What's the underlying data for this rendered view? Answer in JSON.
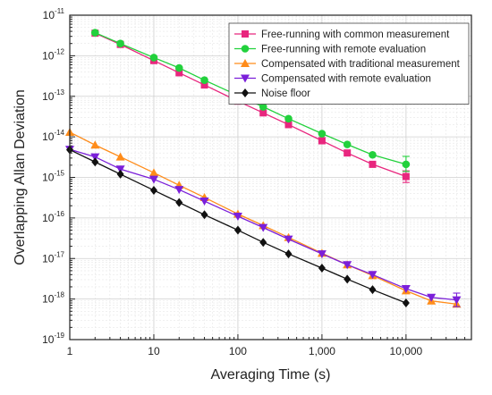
{
  "chart_data": {
    "type": "line",
    "xlabel": "Averaging Time (s)",
    "ylabel": "Overlapping Allan Deviation",
    "xscale": "log",
    "yscale": "log",
    "xlim": [
      1,
      60000
    ],
    "ylim": [
      1e-19,
      1e-11
    ],
    "x_ticks": [
      {
        "value": 1,
        "label": "1"
      },
      {
        "value": 10,
        "label": "10"
      },
      {
        "value": 100,
        "label": "100"
      },
      {
        "value": 1000,
        "label": "1,000"
      },
      {
        "value": 10000,
        "label": "10,000"
      }
    ],
    "y_ticks": [
      {
        "value": 1e-19,
        "base": "10",
        "exp": "-19"
      },
      {
        "value": 1e-18,
        "base": "10",
        "exp": "-18"
      },
      {
        "value": 1e-17,
        "base": "10",
        "exp": "-17"
      },
      {
        "value": 1e-16,
        "base": "10",
        "exp": "-16"
      },
      {
        "value": 1e-15,
        "base": "10",
        "exp": "-15"
      },
      {
        "value": 1e-14,
        "base": "10",
        "exp": "-14"
      },
      {
        "value": 1e-13,
        "base": "10",
        "exp": "-13"
      },
      {
        "value": 1e-12,
        "base": "10",
        "exp": "-12"
      },
      {
        "value": 1e-11,
        "base": "10",
        "exp": "-11"
      }
    ],
    "grid": true,
    "legend_position": "top-right",
    "series": [
      {
        "name": "Free-running with common measurement",
        "color": "#e8267e",
        "marker": "square",
        "x": [
          2,
          4,
          10,
          20,
          40,
          100,
          200,
          400,
          1000,
          2000,
          4000,
          10000
        ],
        "y": [
          3.6e-12,
          1.9e-12,
          7.6e-13,
          3.8e-13,
          1.9e-13,
          7.6e-14,
          3.9e-14,
          2e-14,
          8e-15,
          4e-15,
          2.1e-15,
          1.05e-15
        ],
        "error_last": [
          7.5e-16,
          1.45e-15
        ]
      },
      {
        "name": "Free-running with remote evaluation",
        "color": "#22d13c",
        "marker": "circle",
        "x": [
          2,
          4,
          10,
          20,
          40,
          100,
          200,
          400,
          1000,
          2000,
          4000,
          10000
        ],
        "y": [
          3.7e-12,
          2e-12,
          9e-13,
          5e-13,
          2.5e-13,
          1.05e-13,
          5.5e-14,
          2.8e-14,
          1.2e-14,
          6.5e-15,
          3.6e-15,
          2.1e-15
        ],
        "error_last": [
          1.4e-15,
          3.3e-15
        ]
      },
      {
        "name": "Compensated with traditional measurement",
        "color": "#ff8c1a",
        "marker": "triangle-up",
        "x": [
          1,
          2,
          4,
          10,
          20,
          40,
          100,
          200,
          400,
          1000,
          2000,
          4000,
          10000,
          20000,
          40000
        ],
        "y": [
          1.3e-14,
          6.3e-15,
          3.2e-15,
          1.3e-15,
          6.4e-16,
          3.2e-16,
          1.25e-16,
          6.5e-17,
          3.3e-17,
          1.35e-17,
          7e-18,
          3.8e-18,
          1.6e-18,
          9e-19,
          7.5e-19
        ]
      },
      {
        "name": "Compensated with remote evaluation",
        "color": "#7b1fd9",
        "marker": "triangle-down",
        "x": [
          1,
          2,
          4,
          10,
          20,
          40,
          100,
          200,
          400,
          1000,
          2000,
          4000,
          10000,
          20000,
          40000
        ],
        "y": [
          4.9e-15,
          3.2e-15,
          1.6e-15,
          9e-16,
          5e-16,
          2.6e-16,
          1.1e-16,
          5.8e-17,
          3e-17,
          1.3e-17,
          7e-18,
          4e-18,
          1.8e-18,
          1.1e-18,
          9.5e-19
        ],
        "error_last": [
          6.5e-19,
          1.4e-18
        ]
      },
      {
        "name": "Noise floor",
        "color": "#111111",
        "marker": "diamond",
        "x": [
          1,
          2,
          4,
          10,
          20,
          40,
          100,
          200,
          400,
          1000,
          2000,
          4000,
          10000
        ],
        "y": [
          4.8e-15,
          2.4e-15,
          1.2e-15,
          4.8e-16,
          2.4e-16,
          1.2e-16,
          5e-17,
          2.5e-17,
          1.3e-17,
          5.8e-18,
          3.1e-18,
          1.7e-18,
          8e-19
        ]
      }
    ]
  }
}
